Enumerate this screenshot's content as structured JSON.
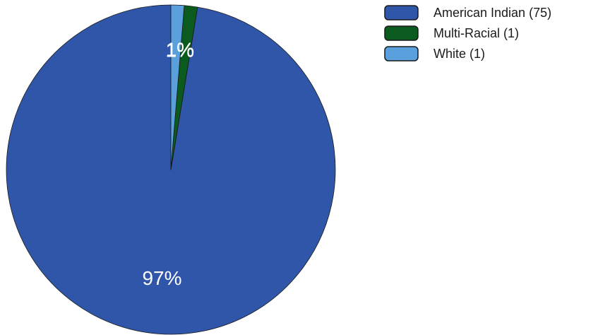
{
  "chart_data": {
    "type": "pie",
    "title": "",
    "slices": [
      {
        "label": "American Indian (75)",
        "value": 75,
        "percent_label": "97%",
        "color": "#2f56a8"
      },
      {
        "label": "Multi-Racial (1)",
        "value": 1,
        "percent_label": "1%",
        "color": "#0b5a1e"
      },
      {
        "label": "White (1)",
        "value": 1,
        "percent_label": "1%",
        "color": "#5aa0dc"
      }
    ],
    "start_angle_deg": 0,
    "direction": "counterclockwise",
    "legend_placement": "top-right"
  }
}
